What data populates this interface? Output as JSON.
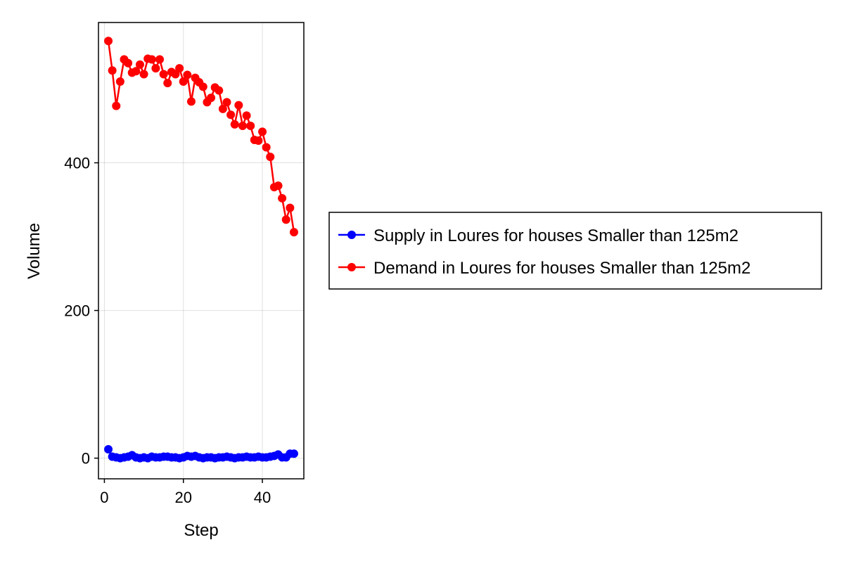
{
  "chart_data": {
    "type": "line",
    "xlabel": "Step",
    "ylabel": "Volume",
    "xlim": [
      -1.5,
      50.5
    ],
    "ylim": [
      -28,
      590
    ],
    "xticks": [
      0,
      20,
      40
    ],
    "yticks": [
      0,
      200,
      400
    ],
    "grid": true,
    "legend_position": "right",
    "x": [
      1,
      2,
      3,
      4,
      5,
      6,
      7,
      8,
      9,
      10,
      11,
      12,
      13,
      14,
      15,
      16,
      17,
      18,
      19,
      20,
      21,
      22,
      23,
      24,
      25,
      26,
      27,
      28,
      29,
      30,
      31,
      32,
      33,
      34,
      35,
      36,
      37,
      38,
      39,
      40,
      41,
      42,
      43,
      44,
      45,
      46,
      47,
      48
    ],
    "series": [
      {
        "name": "Supply in Loures for houses Smaller than 125m2",
        "color": "#0000ff",
        "values": [
          12,
          2,
          1,
          0,
          1,
          2,
          4,
          1,
          0,
          1,
          0,
          2,
          1,
          1,
          2,
          2,
          1,
          1,
          0,
          1,
          3,
          2,
          3,
          1,
          0,
          1,
          1,
          0,
          1,
          1,
          2,
          1,
          0,
          1,
          1,
          2,
          1,
          1,
          2,
          1,
          1,
          2,
          3,
          5,
          1,
          1,
          6,
          6
        ]
      },
      {
        "name": "Demand in Loures for houses Smaller than 125m2",
        "color": "#ff0000",
        "values": [
          565,
          525,
          477,
          510,
          540,
          535,
          522,
          524,
          533,
          520,
          541,
          540,
          528,
          540,
          520,
          508,
          523,
          520,
          528,
          510,
          519,
          483,
          515,
          509,
          503,
          482,
          488,
          502,
          498,
          473,
          482,
          465,
          452,
          478,
          450,
          464,
          450,
          431,
          430,
          442,
          421,
          408,
          367,
          369,
          352,
          323,
          339,
          306
        ]
      }
    ]
  }
}
